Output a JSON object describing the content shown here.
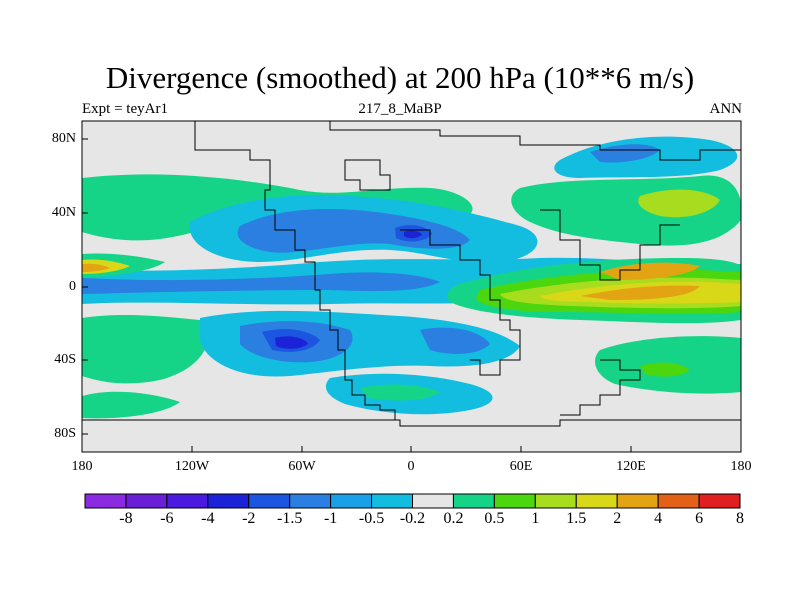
{
  "title": "Divergence (smoothed) at 200 hPa (10**6 m/s)",
  "subtitle_left": "Expt = teyAr1",
  "subtitle_center": "217_8_MaBP",
  "subtitle_right": "ANN",
  "lat_labels": [
    "80N",
    "40N",
    "0",
    "40S",
    "80S"
  ],
  "lon_labels": [
    "180",
    "120W",
    "60W",
    "0",
    "60E",
    "120E",
    "180"
  ],
  "colorbar": {
    "labels": [
      "-8",
      "-6",
      "-4",
      "-2",
      "-1.5",
      "-1",
      "-0.5",
      "-0.2",
      "0.2",
      "0.5",
      "1",
      "1.5",
      "2",
      "4",
      "6",
      "8"
    ],
    "colors": [
      "#8a2be2",
      "#6a1fd6",
      "#4a1ae0",
      "#1c22d8",
      "#1b55e0",
      "#2a7fe0",
      "#1aa0e6",
      "#12bde0",
      "#e6e6e6",
      "#16d487",
      "#4bd60e",
      "#a8dc1e",
      "#d8d818",
      "#e3a414",
      "#e26018",
      "#e02020"
    ]
  }
}
